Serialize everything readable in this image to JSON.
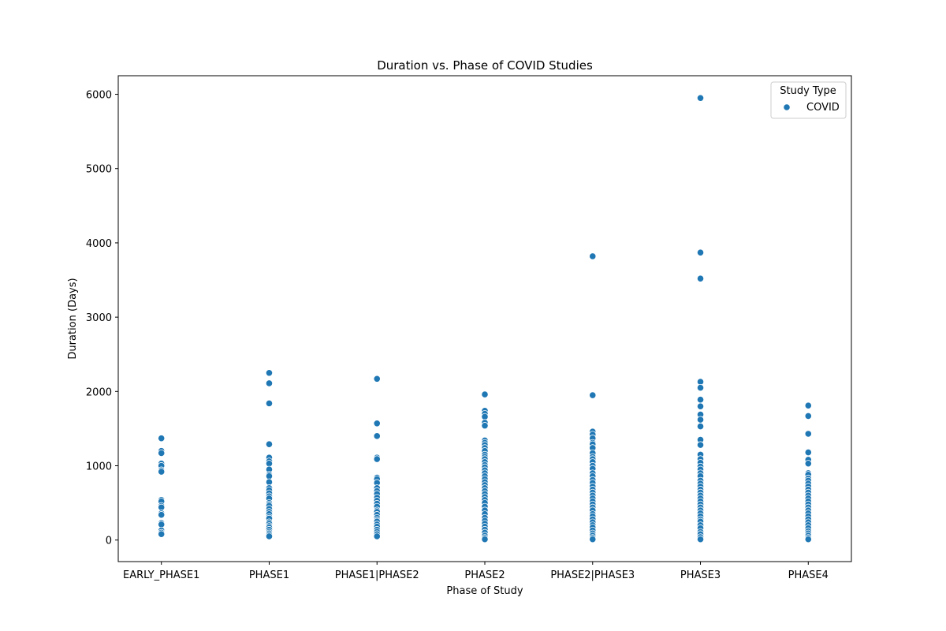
{
  "chart_data": {
    "type": "scatter",
    "title": "Duration vs. Phase of COVID Studies",
    "xlabel": "Phase of Study",
    "ylabel": "Duration (Days)",
    "categories": [
      "EARLY_PHASE1",
      "PHASE1",
      "PHASE1|PHASE2",
      "PHASE2",
      "PHASE2|PHASE3",
      "PHASE3",
      "PHASE4"
    ],
    "yticks": [
      0,
      1000,
      2000,
      3000,
      4000,
      5000,
      6000
    ],
    "ylim": [
      -290,
      6250
    ],
    "grid": false,
    "legend": {
      "title": "Study Type",
      "entries": [
        "COVID"
      ],
      "placement": "top-right"
    },
    "series": [
      {
        "name": "COVID",
        "color": "#1f77b4",
        "points": [
          {
            "x": "EARLY_PHASE1",
            "y": [
              1370,
              1200,
              1170,
              1030,
              1000,
              940,
              920,
              540,
              520,
              460,
              440,
              360,
              340,
              230,
              210,
              130,
              100,
              80
            ]
          },
          {
            "x": "PHASE1",
            "y": [
              2250,
              2110,
              1840,
              1290,
              1110,
              1060,
              1030,
              950,
              880,
              860,
              780,
              700,
              670,
              630,
              590,
              560,
              500,
              480,
              460,
              420,
              380,
              350,
              310,
              290,
              240,
              220,
              190,
              170,
              140,
              110,
              90,
              70,
              50
            ]
          },
          {
            "x": "PHASE1|PHASE2",
            "y": [
              2170,
              1570,
              1400,
              1110,
              1090,
              840,
              820,
              770,
              700,
              660,
              620,
              570,
              530,
              490,
              450,
              400,
              380,
              340,
              300,
              270,
              250,
              210,
              180,
              140,
              110,
              80,
              50
            ]
          },
          {
            "x": "PHASE2",
            "y": [
              1960,
              1740,
              1700,
              1660,
              1580,
              1540,
              1340,
              1310,
              1280,
              1240,
              1200,
              1150,
              1120,
              1090,
              1050,
              1010,
              980,
              940,
              900,
              860,
              820,
              780,
              740,
              700,
              660,
              620,
              580,
              540,
              500,
              450,
              400,
              350,
              300,
              260,
              220,
              180,
              140,
              100,
              60,
              30,
              10
            ]
          },
          {
            "x": "PHASE2|PHASE3",
            "y": [
              3820,
              1950,
              1460,
              1420,
              1370,
              1310,
              1290,
              1240,
              1170,
              1120,
              1090,
              1050,
              1000,
              960,
              900,
              860,
              810,
              770,
              720,
              680,
              640,
              600,
              560,
              520,
              480,
              440,
              400,
              350,
              320,
              280,
              240,
              200,
              170,
              130,
              90,
              60,
              30,
              10
            ]
          },
          {
            "x": "PHASE3",
            "y": [
              5950,
              3870,
              3520,
              2130,
              2050,
              1890,
              1800,
              1690,
              1620,
              1530,
              1350,
              1280,
              1150,
              1090,
              1040,
              990,
              950,
              900,
              860,
              800,
              760,
              720,
              680,
              640,
              600,
              560,
              520,
              480,
              440,
              400,
              360,
              320,
              280,
              250,
              200,
              160,
              110,
              80,
              40,
              10
            ]
          },
          {
            "x": "PHASE4",
            "y": [
              1810,
              1670,
              1430,
              1180,
              1080,
              1030,
              900,
              880,
              830,
              800,
              760,
              720,
              680,
              640,
              600,
              560,
              520,
              480,
              440,
              400,
              360,
              320,
              280,
              240,
              200,
              160,
              120,
              90,
              60,
              30,
              10
            ]
          }
        ]
      }
    ]
  }
}
